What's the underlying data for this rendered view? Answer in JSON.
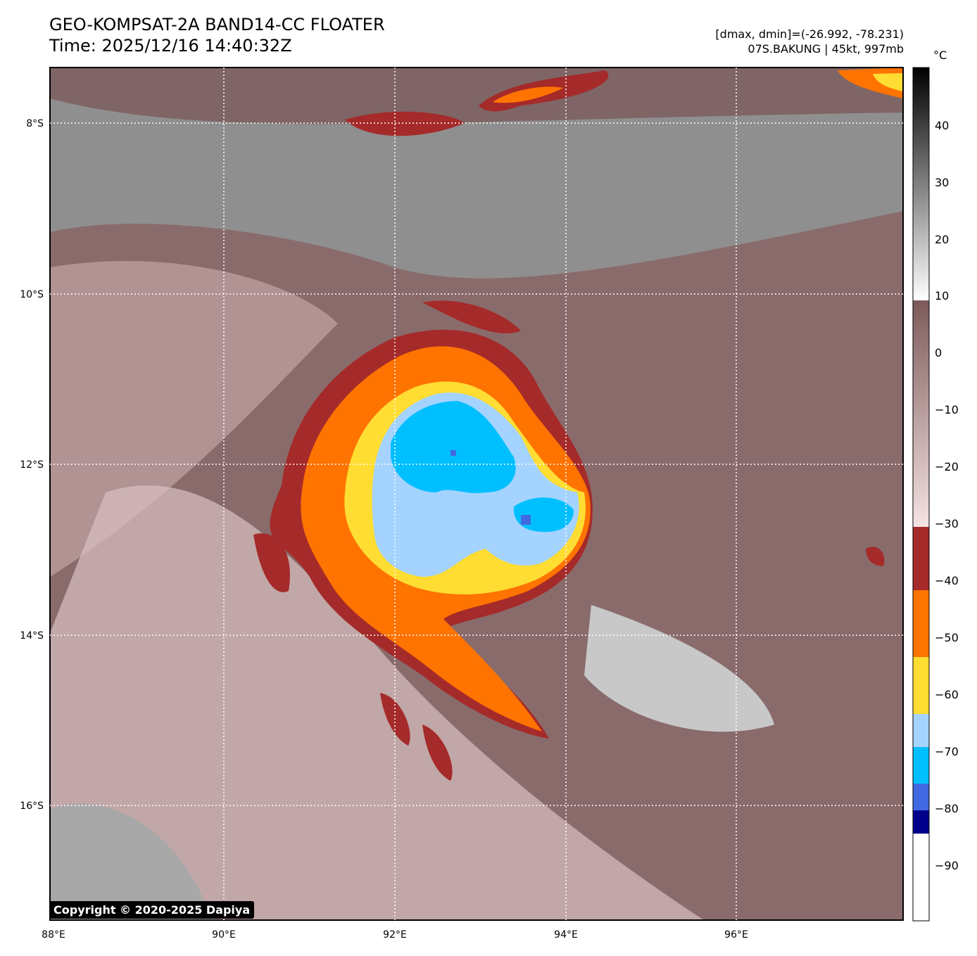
{
  "title": {
    "line1": "GEO-KOMPSAT-2A BAND14-CC FLOATER",
    "line2": "Time: 2025/12/16 14:40:32Z"
  },
  "info": {
    "range": "[dmax, dmin]=(-26.992, -78.231)",
    "storm": "07S.BAKUNG | 45kt, 997mb"
  },
  "colorbar": {
    "unit": "°C",
    "ticks": [
      "40",
      "30",
      "20",
      "10",
      "0",
      "−10",
      "−20",
      "−30",
      "−40",
      "−50",
      "−60",
      "−70",
      "−80",
      "−90"
    ],
    "colors": {
      "black": "#000000",
      "white": "#ffffff",
      "brown": "#7d5a5a",
      "pink": "#f2dcdc",
      "darkred": "#a52a2a",
      "orange": "#ff7300",
      "yellow": "#ffdd33",
      "lightblue": "#a4d3ff",
      "cyan": "#00bfff",
      "royalblue": "#4169e1",
      "navy": "#00008b"
    }
  },
  "map": {
    "lat_labels": [
      "8°S",
      "10°S",
      "12°S",
      "14°S",
      "16°S"
    ],
    "lon_labels": [
      "88°E",
      "90°E",
      "92°E",
      "94°E",
      "96°E"
    ]
  },
  "copyright": "Copyright © 2020-2025 Dapiya"
}
